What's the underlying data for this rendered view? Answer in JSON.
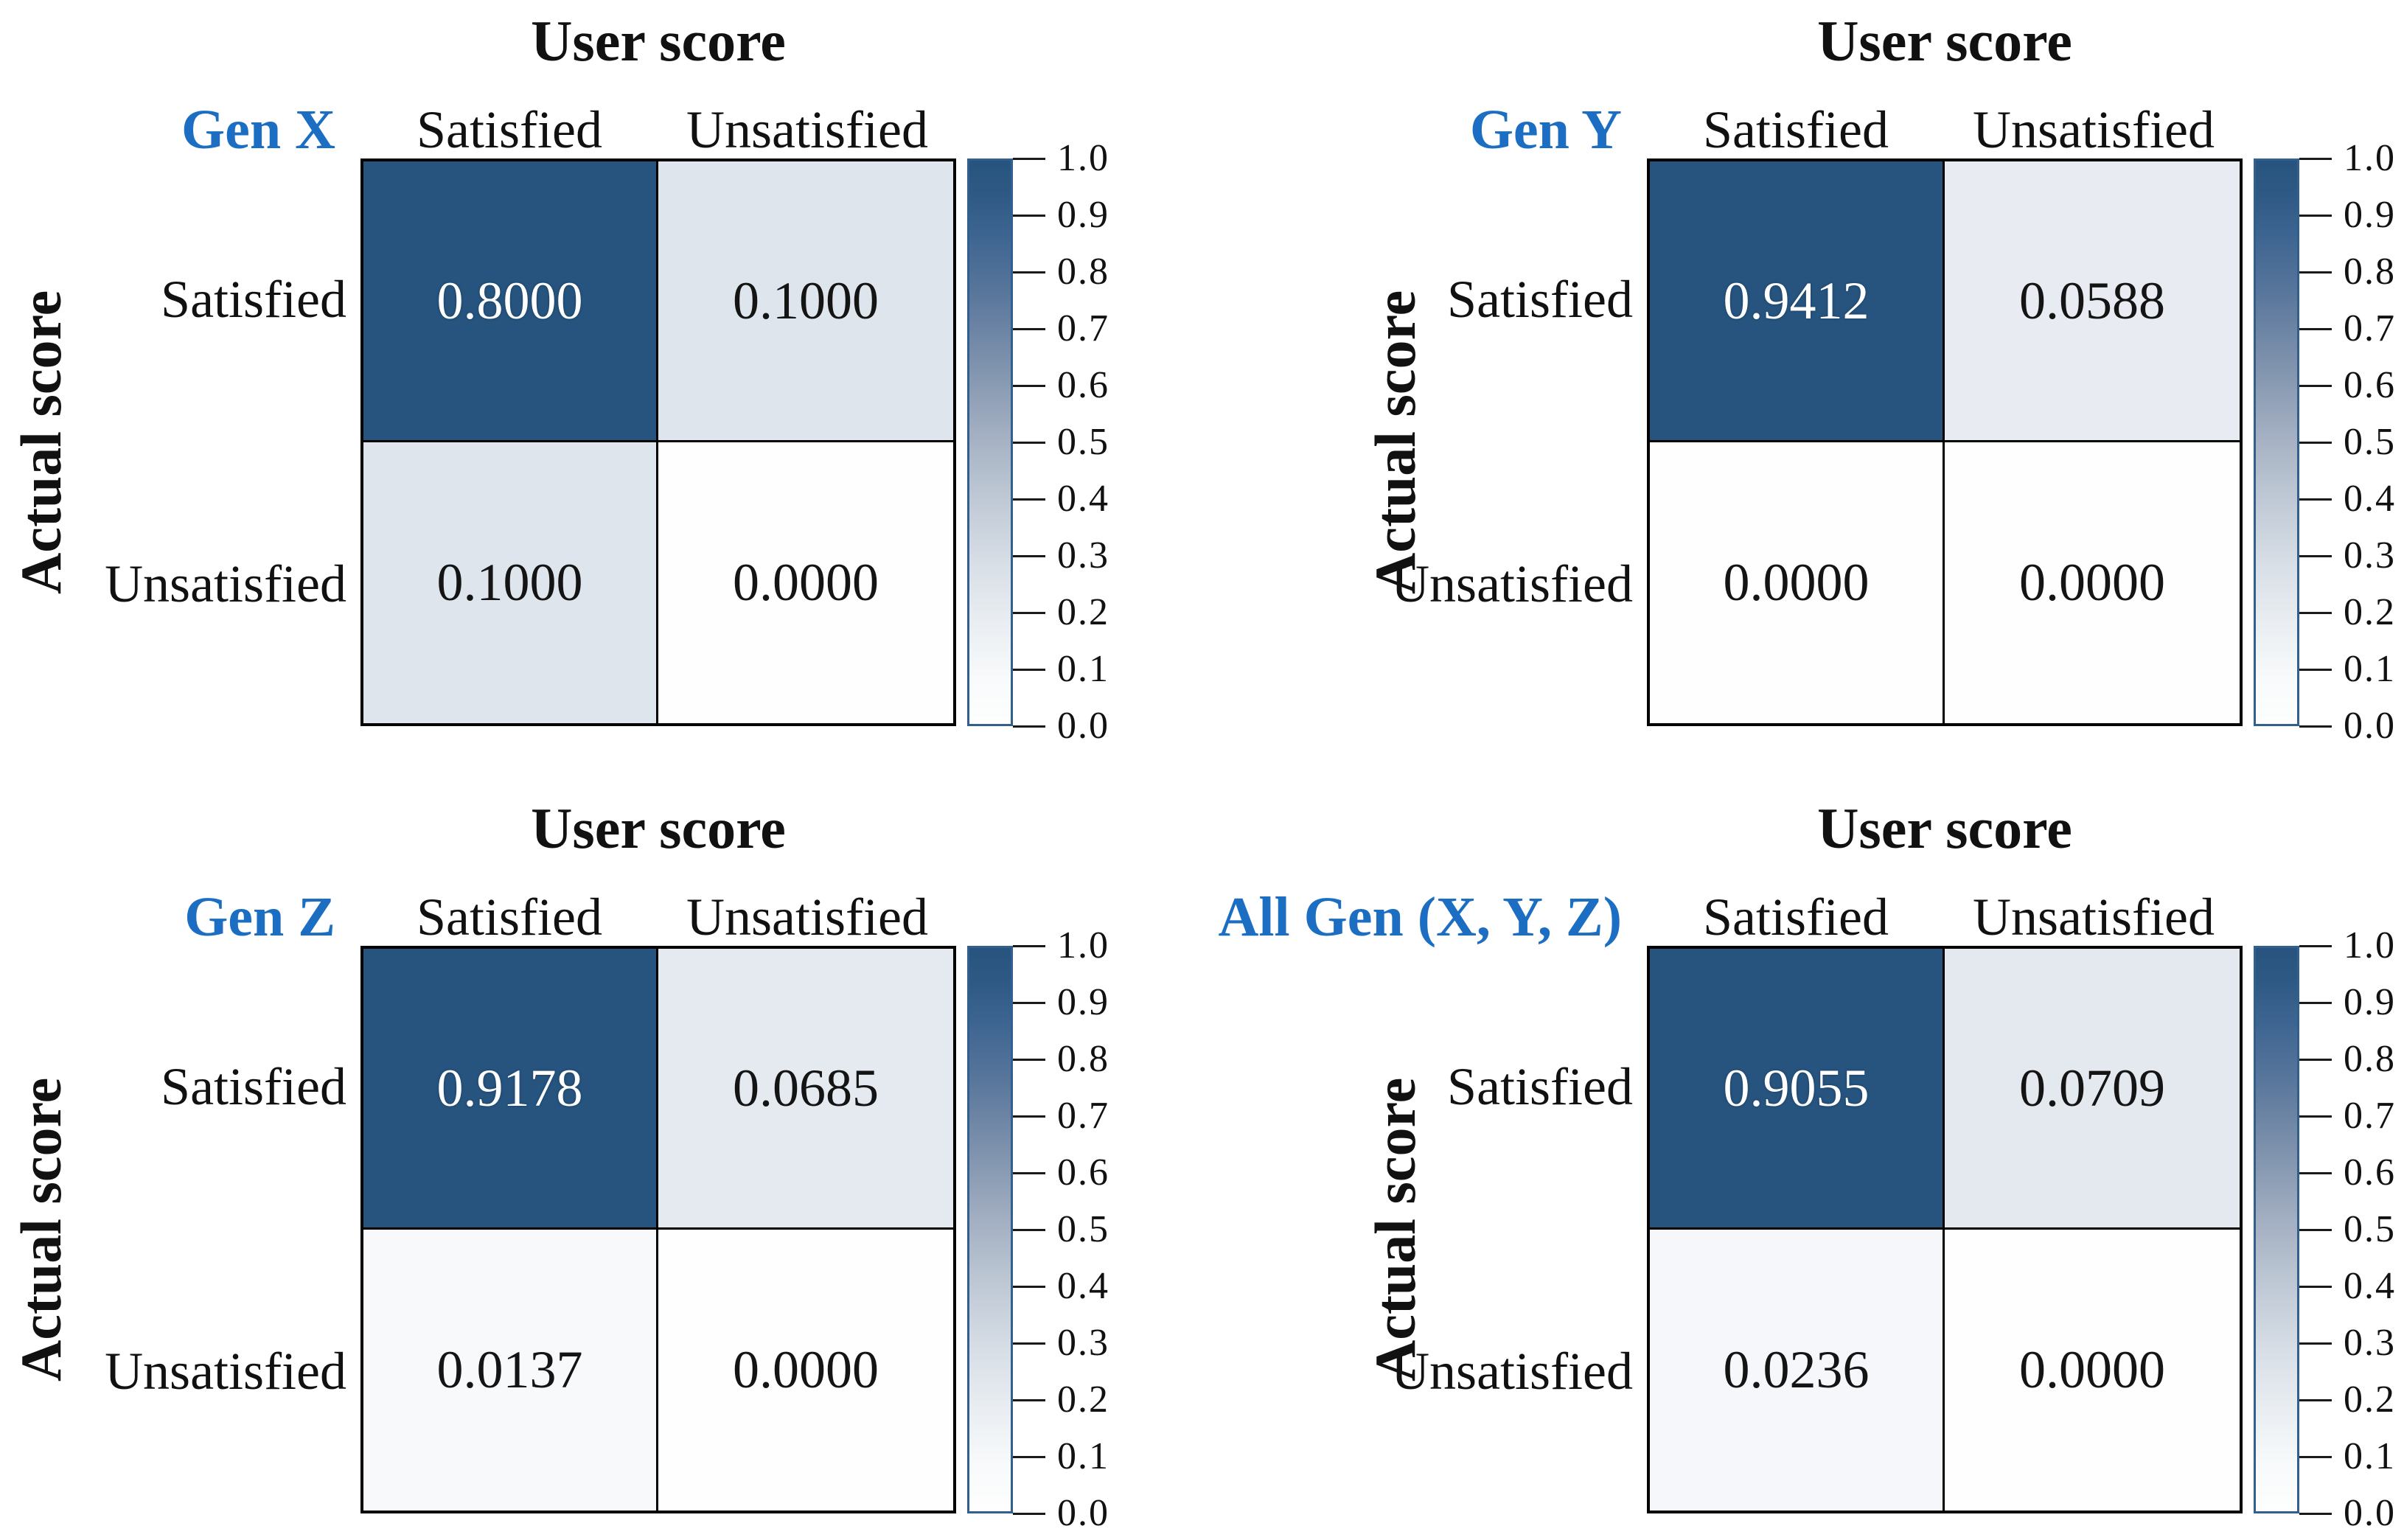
{
  "figure": {
    "title": "User score",
    "ylabel": "Actual score",
    "col_headers": [
      "Satisfied",
      "Unsatisfied"
    ],
    "row_headers": [
      "Satisfied",
      "Unsatisfied"
    ],
    "gen_label_color": "#1b6ec2",
    "text_color": "#111111",
    "grid_line_color": "#000000",
    "colorbar": {
      "ticks": [
        "1.0",
        "0.9",
        "0.8",
        "0.7",
        "0.6",
        "0.5",
        "0.4",
        "0.3",
        "0.2",
        "0.1",
        "0.0"
      ],
      "border_color": "#31608f",
      "gradient_top_color": "#27547e",
      "gradient_bottom_color": "#fefefe"
    }
  },
  "panels": [
    {
      "group": "Gen X",
      "cells": [
        {
          "text": "0.8000",
          "bg": "#26547e",
          "fg": "#ffffff"
        },
        {
          "text": "0.1000",
          "bg": "#dfe5ec",
          "fg": "#141414"
        },
        {
          "text": "0.1000",
          "bg": "#dfe5ec",
          "fg": "#141414"
        },
        {
          "text": "0.0000",
          "bg": "#fefefe",
          "fg": "#141414"
        }
      ]
    },
    {
      "group": "Gen Y",
      "cells": [
        {
          "text": "0.9412",
          "bg": "#26547e",
          "fg": "#ffffff"
        },
        {
          "text": "0.0588",
          "bg": "#e8ecf2",
          "fg": "#141414"
        },
        {
          "text": "0.0000",
          "bg": "#fefefe",
          "fg": "#141414"
        },
        {
          "text": "0.0000",
          "bg": "#fefefe",
          "fg": "#141414"
        }
      ]
    },
    {
      "group": "Gen Z",
      "cells": [
        {
          "text": "0.9178",
          "bg": "#26547e",
          "fg": "#ffffff"
        },
        {
          "text": "0.0685",
          "bg": "#e5eaf0",
          "fg": "#141414"
        },
        {
          "text": "0.0137",
          "bg": "#f7f9fb",
          "fg": "#141414"
        },
        {
          "text": "0.0000",
          "bg": "#fefefe",
          "fg": "#141414"
        }
      ]
    },
    {
      "group": "All Gen (X, Y, Z)",
      "cells": [
        {
          "text": "0.9055",
          "bg": "#26547e",
          "fg": "#ffffff"
        },
        {
          "text": "0.0709",
          "bg": "#e4e9ef",
          "fg": "#141414"
        },
        {
          "text": "0.0236",
          "bg": "#f5f7fa",
          "fg": "#141414"
        },
        {
          "text": "0.0000",
          "bg": "#fefefe",
          "fg": "#141414"
        }
      ]
    }
  ],
  "chart_data": [
    {
      "type": "heatmap",
      "title": "User score",
      "group": "Gen X",
      "xlabel": "User score",
      "ylabel": "Actual score",
      "x_categories": [
        "Satisfied",
        "Unsatisfied"
      ],
      "y_categories": [
        "Satisfied",
        "Unsatisfied"
      ],
      "values": [
        [
          0.8,
          0.1
        ],
        [
          0.1,
          0.0
        ]
      ],
      "vmin": 0.0,
      "vmax": 1.0,
      "colorbar_ticks": [
        1.0,
        0.9,
        0.8,
        0.7,
        0.6,
        0.5,
        0.4,
        0.3,
        0.2,
        0.1,
        0.0
      ],
      "colormap": "white-to-dark-blue",
      "legend_position": "right-colorbar",
      "grid": false
    },
    {
      "type": "heatmap",
      "title": "User score",
      "group": "Gen Y",
      "xlabel": "User score",
      "ylabel": "Actual score",
      "x_categories": [
        "Satisfied",
        "Unsatisfied"
      ],
      "y_categories": [
        "Satisfied",
        "Unsatisfied"
      ],
      "values": [
        [
          0.9412,
          0.0588
        ],
        [
          0.0,
          0.0
        ]
      ],
      "vmin": 0.0,
      "vmax": 1.0,
      "colorbar_ticks": [
        1.0,
        0.9,
        0.8,
        0.7,
        0.6,
        0.5,
        0.4,
        0.3,
        0.2,
        0.1,
        0.0
      ],
      "colormap": "white-to-dark-blue",
      "legend_position": "right-colorbar",
      "grid": false
    },
    {
      "type": "heatmap",
      "title": "User score",
      "group": "Gen Z",
      "xlabel": "User score",
      "ylabel": "Actual score",
      "x_categories": [
        "Satisfied",
        "Unsatisfied"
      ],
      "y_categories": [
        "Satisfied",
        "Unsatisfied"
      ],
      "values": [
        [
          0.9178,
          0.0685
        ],
        [
          0.0137,
          0.0
        ]
      ],
      "vmin": 0.0,
      "vmax": 1.0,
      "colorbar_ticks": [
        1.0,
        0.9,
        0.8,
        0.7,
        0.6,
        0.5,
        0.4,
        0.3,
        0.2,
        0.1,
        0.0
      ],
      "colormap": "white-to-dark-blue",
      "legend_position": "right-colorbar",
      "grid": false
    },
    {
      "type": "heatmap",
      "title": "User score",
      "group": "All Gen (X, Y, Z)",
      "xlabel": "User score",
      "ylabel": "Actual score",
      "x_categories": [
        "Satisfied",
        "Unsatisfied"
      ],
      "y_categories": [
        "Satisfied",
        "Unsatisfied"
      ],
      "values": [
        [
          0.9055,
          0.0709
        ],
        [
          0.0236,
          0.0
        ]
      ],
      "vmin": 0.0,
      "vmax": 1.0,
      "colorbar_ticks": [
        1.0,
        0.9,
        0.8,
        0.7,
        0.6,
        0.5,
        0.4,
        0.3,
        0.2,
        0.1,
        0.0
      ],
      "colormap": "white-to-dark-blue",
      "legend_position": "right-colorbar",
      "grid": false
    }
  ]
}
